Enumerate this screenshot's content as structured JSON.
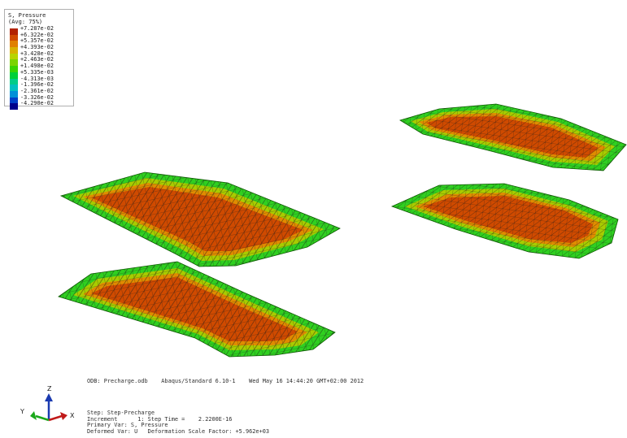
{
  "legend": {
    "title": "S, Pressure",
    "subtitle": "(Avg: 75%)",
    "entries": [
      {
        "label": "+7.287e-02",
        "color": "#b22200"
      },
      {
        "label": "+6.322e-02",
        "color": "#d04a00"
      },
      {
        "label": "+5.357e-02",
        "color": "#e08000"
      },
      {
        "label": "+4.393e-02",
        "color": "#d8b200"
      },
      {
        "label": "+3.428e-02",
        "color": "#b8d400"
      },
      {
        "label": "+2.463e-02",
        "color": "#7ad400"
      },
      {
        "label": "+1.498e-02",
        "color": "#3ad400"
      },
      {
        "label": "+5.335e-03",
        "color": "#00d03a"
      },
      {
        "label": "-4.313e-03",
        "color": "#00cc88"
      },
      {
        "label": "-1.396e-02",
        "color": "#00c0c0"
      },
      {
        "label": "-2.361e-02",
        "color": "#0090d8"
      },
      {
        "label": "-3.326e-02",
        "color": "#0040c8"
      },
      {
        "label": "-4.290e-02",
        "color": "#00008c"
      }
    ]
  },
  "odb_line": "ODB: Precharge.odb    Abaqus/Standard 6.10-1    Wed May 16 14:44:20 GMT+02:00 2012",
  "step_info": {
    "step": "Step: Step-Precharge",
    "increment": "Increment      1: Step Time =    2.2200E-16",
    "primary_var": "Primary Var: S, Pressure",
    "deformed_var": "Deformed Var: U   Deformation Scale Factor: +5.962e+03"
  },
  "triad": {
    "z": "Z",
    "y": "Y",
    "x": "X"
  },
  "colors": {
    "mesh_line": "#1a1a1a",
    "background": "#ffffff"
  }
}
